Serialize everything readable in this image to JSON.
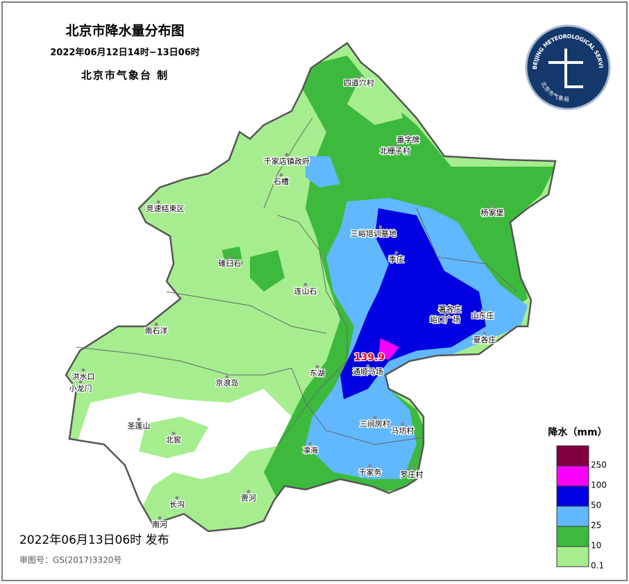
{
  "header": {
    "title": "北京市降水量分布图",
    "period": "2022年06月12日14时−13日06时",
    "issuer": "北京市气象台 制"
  },
  "logo": {
    "text_top": "BEIJING METEOROLOGICAL SERVICE",
    "text_bottom": "北京市气象局"
  },
  "stations": [
    {
      "name": "四道穴村"
    },
    {
      "name": "番字牌"
    },
    {
      "name": "北栅子村"
    },
    {
      "name": "千家店镇政府"
    },
    {
      "name": "石槽"
    },
    {
      "name": "竞速结束区"
    },
    {
      "name": "杨家堡"
    },
    {
      "name": "三峪培训基地"
    },
    {
      "name": "季庄"
    },
    {
      "name": "碓臼石"
    },
    {
      "name": "连山石"
    },
    {
      "name": "署各庄"
    },
    {
      "name": "峪口广场"
    },
    {
      "name": "山东庄"
    },
    {
      "name": "夏各庄"
    },
    {
      "name": "南石洋"
    },
    {
      "name": "洪水口"
    },
    {
      "name": "小龙门"
    },
    {
      "name": "东湖"
    },
    {
      "name": "通顺马场"
    },
    {
      "name": "京浪岛"
    },
    {
      "name": "圣莲山"
    },
    {
      "name": "北窖"
    },
    {
      "name": "三间房村"
    },
    {
      "name": "马坊村"
    },
    {
      "name": "凛海"
    },
    {
      "name": "于家务"
    },
    {
      "name": "罗庄村"
    },
    {
      "name": "贾河"
    },
    {
      "name": "长沟"
    },
    {
      "name": "南河"
    }
  ],
  "max_value": 139.9,
  "legend": {
    "title": "降水（mm）",
    "levels": [
      {
        "value": 0.1,
        "color": "#a6ed8f"
      },
      {
        "value": 10,
        "color": "#3dba3d"
      },
      {
        "value": 25,
        "color": "#61b8ff"
      },
      {
        "value": 50,
        "color": "#0000e1"
      },
      {
        "value": 100,
        "color": "#fa00fa"
      },
      {
        "value": 250,
        "color": "#800040"
      }
    ]
  },
  "footer": {
    "release": "2022年06月13日06时 发布",
    "approval": "审图号：GS(2017)3320号"
  }
}
